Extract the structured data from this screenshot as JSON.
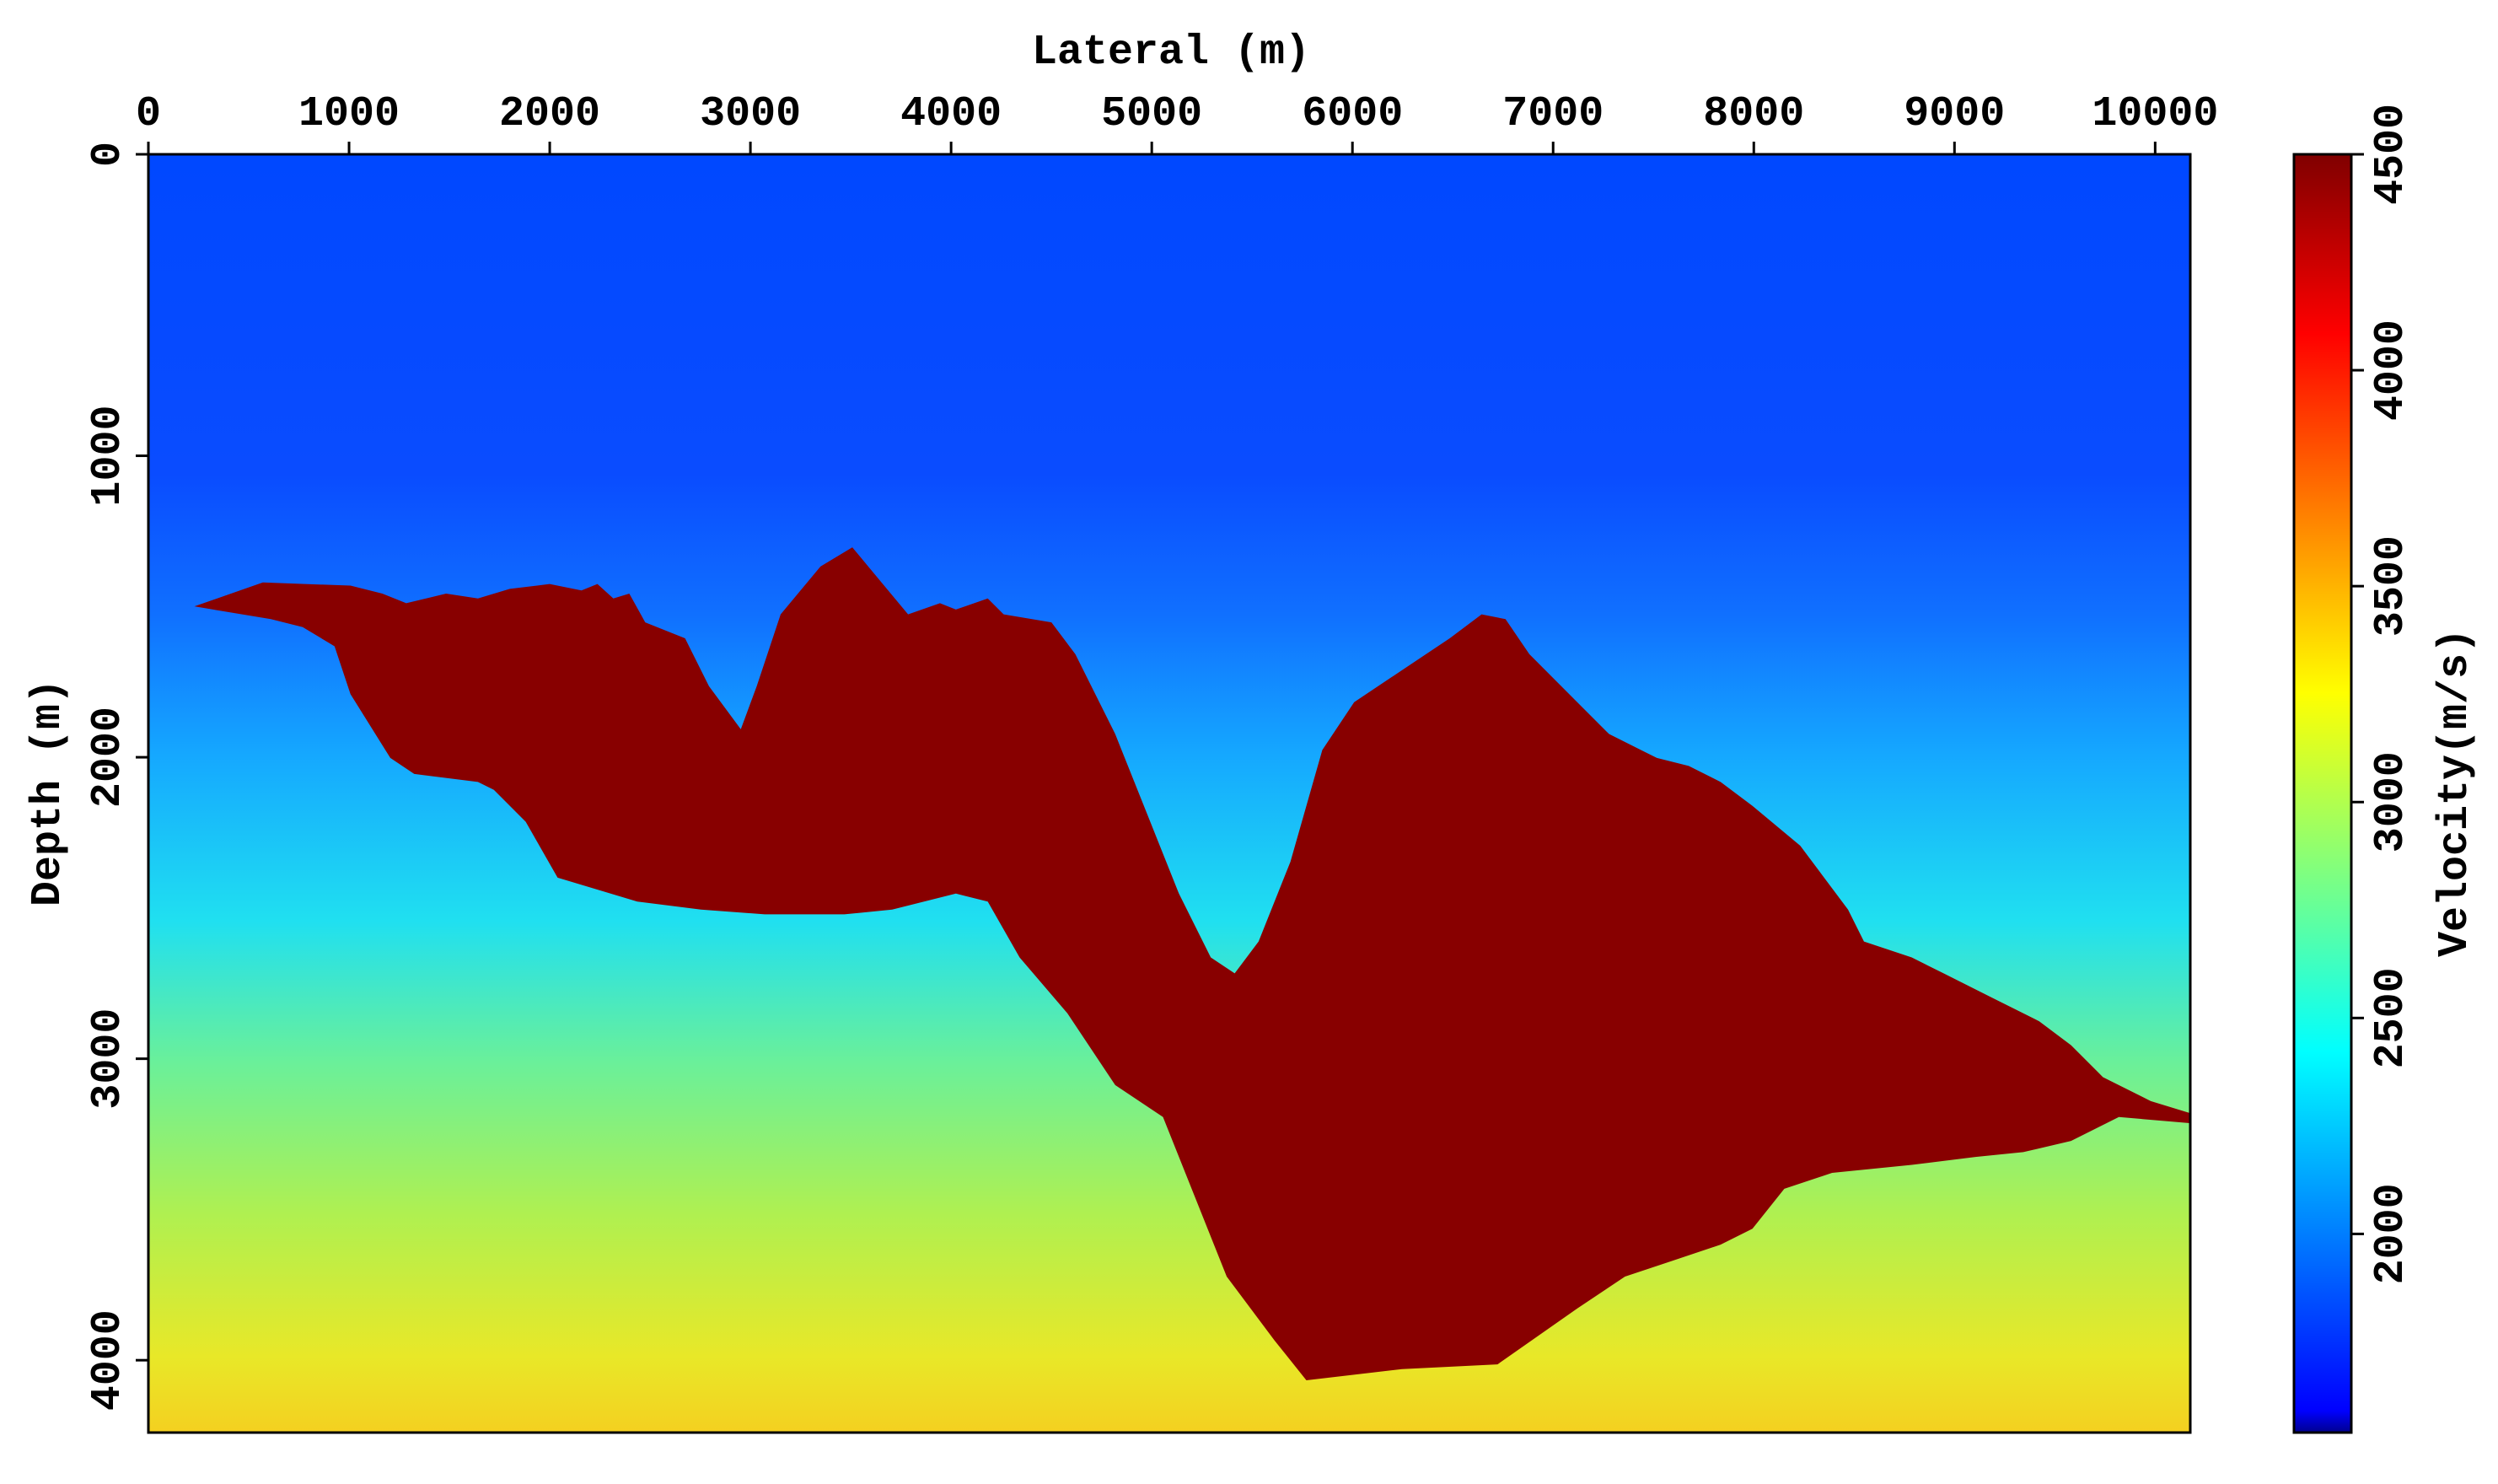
{
  "chart_data": {
    "type": "image",
    "xlabel": "Lateral (m)",
    "ylabel": "Depth (m)",
    "colorbar_label": "Velocity(m/s)",
    "xlim": [
      0,
      10175
    ],
    "xticks": [
      0,
      1000,
      2000,
      3000,
      4000,
      5000,
      6000,
      7000,
      8000,
      9000,
      10000
    ],
    "ylim": [
      0,
      4240
    ],
    "yticks": [
      0,
      1000,
      2000,
      3000,
      4000
    ],
    "clim": [
      1540,
      4500
    ],
    "cticks": [
      2000,
      2500,
      3000,
      3500,
      4000,
      4500
    ],
    "colormap": "jet",
    "x_axis_position": "top"
  }
}
